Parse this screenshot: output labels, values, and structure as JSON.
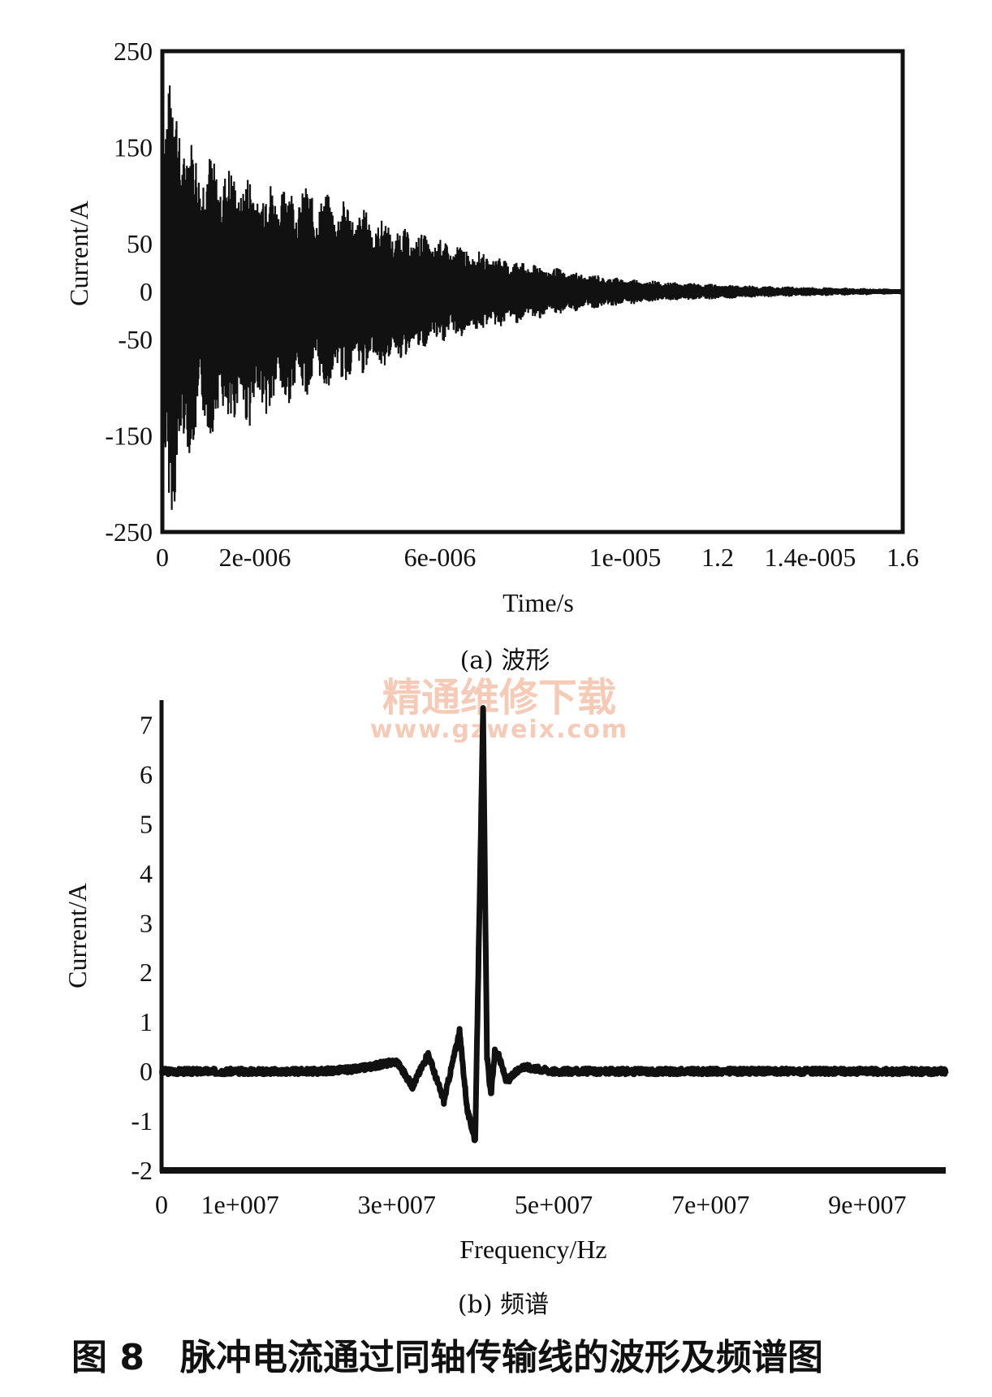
{
  "chart_data": [
    {
      "type": "line",
      "xlabel": "Time/s",
      "ylabel": "Current/A",
      "xlim": [
        0,
        1.6e-05
      ],
      "ylim": [
        -250,
        250
      ],
      "y_ticks": [
        "250",
        "150",
        "50",
        "0",
        "-50",
        "-150",
        "-250"
      ],
      "y_tick_values": [
        250,
        150,
        50,
        0,
        -50,
        -150,
        -250
      ],
      "x_ticks": [
        "0",
        "2e-006",
        "6e-006",
        "1e-005",
        "1.2",
        "1.4e-005",
        "1.6"
      ],
      "x_tick_values": [
        0,
        2e-06,
        6e-06,
        1e-05,
        1.2e-05,
        1.4e-05,
        1.6e-05
      ],
      "series": [
        {
          "description": "damped oscillation envelope",
          "x": [
            0,
            2.5e-07,
            5e-07,
            1e-06,
            1.5e-06,
            2e-06,
            3e-06,
            4e-06,
            5e-06,
            6e-06,
            7e-06,
            8e-06,
            9e-06,
            1e-05,
            1.1e-05,
            1.2e-05,
            1.3e-05,
            1.4e-05,
            1.5e-05,
            1.6e-05
          ],
          "upper": [
            210,
            230,
            165,
            145,
            130,
            120,
            112,
            95,
            70,
            55,
            40,
            30,
            20,
            14,
            10,
            8,
            6,
            5,
            4,
            3
          ],
          "lower": [
            -200,
            -235,
            -175,
            -150,
            -145,
            -140,
            -110,
            -95,
            -75,
            -55,
            -40,
            -30,
            -20,
            -14,
            -10,
            -8,
            -6,
            -5,
            -4,
            -3
          ]
        }
      ],
      "subtitle": "(a) 波形"
    },
    {
      "type": "line",
      "xlabel": "Frequency/Hz",
      "ylabel": "Current/A",
      "xlim": [
        0,
        100000000.0
      ],
      "ylim": [
        -2,
        7.5
      ],
      "y_ticks": [
        "7",
        "6",
        "5",
        "4",
        "3",
        "2",
        "1",
        "0",
        "-1",
        "-2"
      ],
      "y_tick_values": [
        7,
        6,
        5,
        4,
        3,
        2,
        1,
        0,
        -1,
        -2
      ],
      "x_ticks": [
        "0",
        "1e+007",
        "3e+007",
        "5e+007",
        "7e+007",
        "9e+007"
      ],
      "x_tick_values": [
        0,
        10000000.0,
        30000000.0,
        50000000.0,
        70000000.0,
        90000000.0
      ],
      "series": [
        {
          "description": "spectrum",
          "x": [
            0,
            10000000.0,
            20000000.0,
            25000000.0,
            30000000.0,
            32000000.0,
            34000000.0,
            36000000.0,
            38000000.0,
            39000000.0,
            40000000.0,
            41000000.0,
            41500000.0,
            42000000.0,
            42500000.0,
            43000000.0,
            44000000.0,
            46000000.0,
            50000000.0,
            60000000.0,
            70000000.0,
            80000000.0,
            90000000.0,
            100000000.0
          ],
          "y": [
            0,
            0,
            0,
            0.05,
            0.2,
            -0.3,
            0.35,
            -0.6,
            0.8,
            -0.8,
            -1.4,
            7.3,
            0.3,
            -0.5,
            0.4,
            0.3,
            -0.2,
            0.1,
            0,
            0,
            0,
            0,
            0,
            0
          ]
        }
      ],
      "subtitle": "(b) 频谱"
    }
  ],
  "watermark": {
    "line1": "精通维修下载",
    "line2": "www.gzweix.com"
  },
  "caption": {
    "label": "图 8",
    "text": "脉冲电流通过同轴传输线的波形及频谱图"
  }
}
